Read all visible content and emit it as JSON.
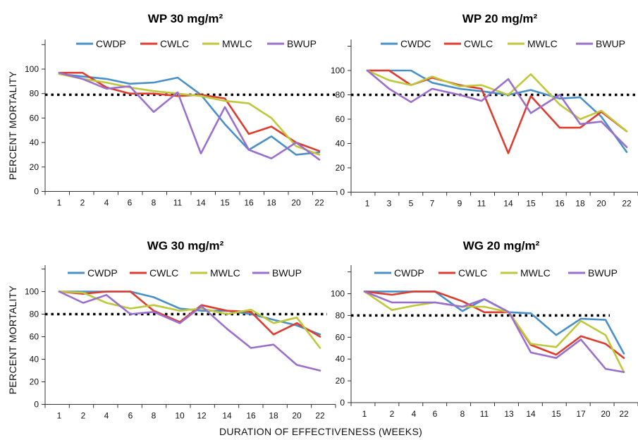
{
  "figure": {
    "ylabel": "PERCENT MORTALITY",
    "xlabel": "DURATION OF EFFECTIVENESS (WEEKS)"
  },
  "colors": {
    "CWDP": "#4a90c8",
    "CWLC": "#dd3c2f",
    "MWLC": "#bfc73a",
    "BWUP": "#9b6fcc"
  },
  "chart_data": [
    {
      "type": "line",
      "title": "WP 30 mg/m²",
      "categories": [
        "1",
        "2",
        "4",
        "6",
        "8",
        "11",
        "14",
        "15",
        "16",
        "18",
        "20",
        "22"
      ],
      "ylim": [
        0,
        120
      ],
      "yticks": [
        0,
        20,
        40,
        60,
        80,
        100
      ],
      "threshold": 79,
      "series": [
        {
          "name": "CWDP",
          "color_key": "CWDP",
          "values": [
            96,
            94,
            92,
            88,
            89,
            93,
            79,
            55,
            34,
            45,
            30,
            32
          ]
        },
        {
          "name": "CWLC",
          "color_key": "CWLC",
          "values": [
            97,
            97,
            85,
            80,
            80,
            78,
            79,
            76,
            47,
            53,
            40,
            33
          ]
        },
        {
          "name": "MWLC",
          "color_key": "MWLC",
          "values": [
            96,
            92,
            89,
            85,
            82,
            80,
            78,
            74,
            72,
            60,
            37,
            30
          ]
        },
        {
          "name": "BWUP",
          "color_key": "BWUP",
          "values": [
            97,
            92,
            84,
            86,
            65,
            81,
            31,
            69,
            34,
            27,
            40,
            26
          ]
        }
      ]
    },
    {
      "type": "line",
      "title": "WP 20 mg/m²",
      "categories": [
        "1",
        "3",
        "5",
        "7",
        "9",
        "11",
        "14",
        "15",
        "16",
        "18",
        "20",
        "22"
      ],
      "ylim": [
        0,
        120
      ],
      "yticks": [
        0,
        20,
        40,
        60,
        80,
        100
      ],
      "threshold": 80,
      "series": [
        {
          "name": "CWDC",
          "color_key": "CWDP",
          "values": [
            100,
            100,
            100,
            90,
            85,
            83,
            80,
            84,
            77,
            78,
            62,
            33
          ]
        },
        {
          "name": "CWLC",
          "color_key": "CWLC",
          "values": [
            100,
            100,
            88,
            94,
            88,
            85,
            32,
            79,
            53,
            53,
            66,
            50
          ]
        },
        {
          "name": "MWLC",
          "color_key": "MWLC",
          "values": [
            100,
            92,
            88,
            95,
            87,
            88,
            80,
            97,
            72,
            60,
            67,
            50
          ]
        },
        {
          "name": "BWUP",
          "color_key": "BWUP",
          "values": [
            100,
            85,
            74,
            85,
            80,
            75,
            93,
            65,
            80,
            56,
            58,
            37
          ]
        }
      ]
    },
    {
      "type": "line",
      "title": "WG 30 mg/m²",
      "categories": [
        "1",
        "2",
        "4",
        "6",
        "8",
        "10",
        "12",
        "14",
        "16",
        "18",
        "20",
        "22"
      ],
      "ylim": [
        0,
        120
      ],
      "yticks": [
        0,
        20,
        40,
        60,
        80,
        100
      ],
      "threshold": 80,
      "series": [
        {
          "name": "CWDP",
          "color_key": "CWDP",
          "values": [
            100,
            100,
            100,
            100,
            95,
            85,
            83,
            83,
            80,
            75,
            70,
            62
          ]
        },
        {
          "name": "CWLC",
          "color_key": "CWLC",
          "values": [
            100,
            98,
            100,
            100,
            83,
            73,
            88,
            83,
            82,
            62,
            72,
            60
          ]
        },
        {
          "name": "MWLC",
          "color_key": "MWLC",
          "values": [
            100,
            99,
            90,
            85,
            88,
            83,
            85,
            80,
            84,
            72,
            77,
            50
          ]
        },
        {
          "name": "BWUP",
          "color_key": "BWUP",
          "values": [
            100,
            90,
            97,
            80,
            82,
            72,
            87,
            67,
            50,
            53,
            35,
            30
          ]
        }
      ]
    },
    {
      "type": "line",
      "title": "WG 20 mg/m²",
      "categories": [
        "1",
        "2",
        "4",
        "6",
        "8",
        "11",
        "13",
        "14",
        "15",
        "17",
        "20",
        "22"
      ],
      "ylim": [
        0,
        120
      ],
      "yticks": [
        0,
        20,
        40,
        60,
        80,
        100
      ],
      "threshold": 80,
      "series": [
        {
          "name": "CWDP",
          "color_key": "CWDP",
          "values": [
            102,
            102,
            102,
            102,
            84,
            95,
            83,
            82,
            62,
            77,
            76,
            45
          ]
        },
        {
          "name": "CWLC",
          "color_key": "CWLC",
          "values": [
            102,
            99,
            102,
            102,
            93,
            83,
            83,
            53,
            44,
            61,
            54,
            41
          ]
        },
        {
          "name": "MWLC",
          "color_key": "MWLC",
          "values": [
            102,
            85,
            89,
            92,
            88,
            88,
            83,
            54,
            51,
            75,
            62,
            28
          ]
        },
        {
          "name": "BWUP",
          "color_key": "BWUP",
          "values": [
            102,
            92,
            92,
            92,
            88,
            95,
            83,
            46,
            41,
            58,
            31,
            28
          ]
        }
      ]
    }
  ]
}
